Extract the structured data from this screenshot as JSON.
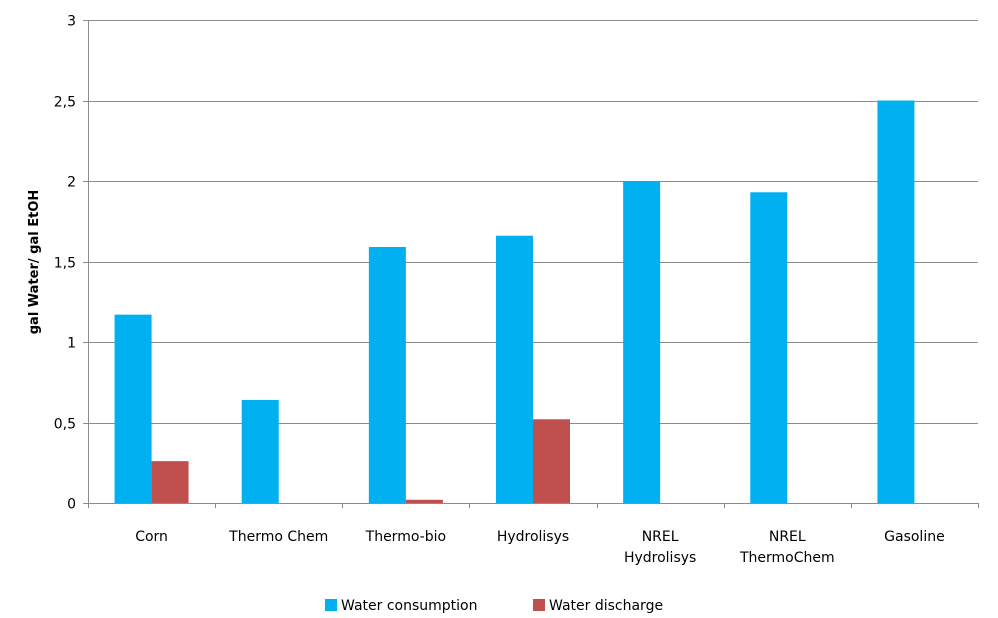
{
  "chart_data": {
    "type": "bar",
    "categories": [
      [
        "Corn"
      ],
      [
        "Thermo Chem"
      ],
      [
        "Thermo-bio"
      ],
      [
        "Hydrolisys"
      ],
      [
        "NREL",
        "Hydrolisys"
      ],
      [
        "NREL",
        "ThermoChem"
      ],
      [
        "Gasoline"
      ]
    ],
    "series": [
      {
        "name": "Water consumption",
        "color": "#00B0F0",
        "values": [
          1.17,
          0.64,
          1.59,
          1.66,
          2.0,
          1.93,
          2.5
        ]
      },
      {
        "name": "Water discharge",
        "color": "#C0504D",
        "values": [
          0.26,
          0.0,
          0.02,
          0.52,
          0.0,
          0.0,
          0.0
        ]
      }
    ],
    "ylabel": "gal Water/ gal EtOH",
    "xlabel": "",
    "ylim": [
      0,
      3
    ],
    "yticks": [
      "0",
      "0,5",
      "1",
      "1,5",
      "2",
      "2,5",
      "3"
    ],
    "grid": true,
    "legend_position": "bottom"
  }
}
